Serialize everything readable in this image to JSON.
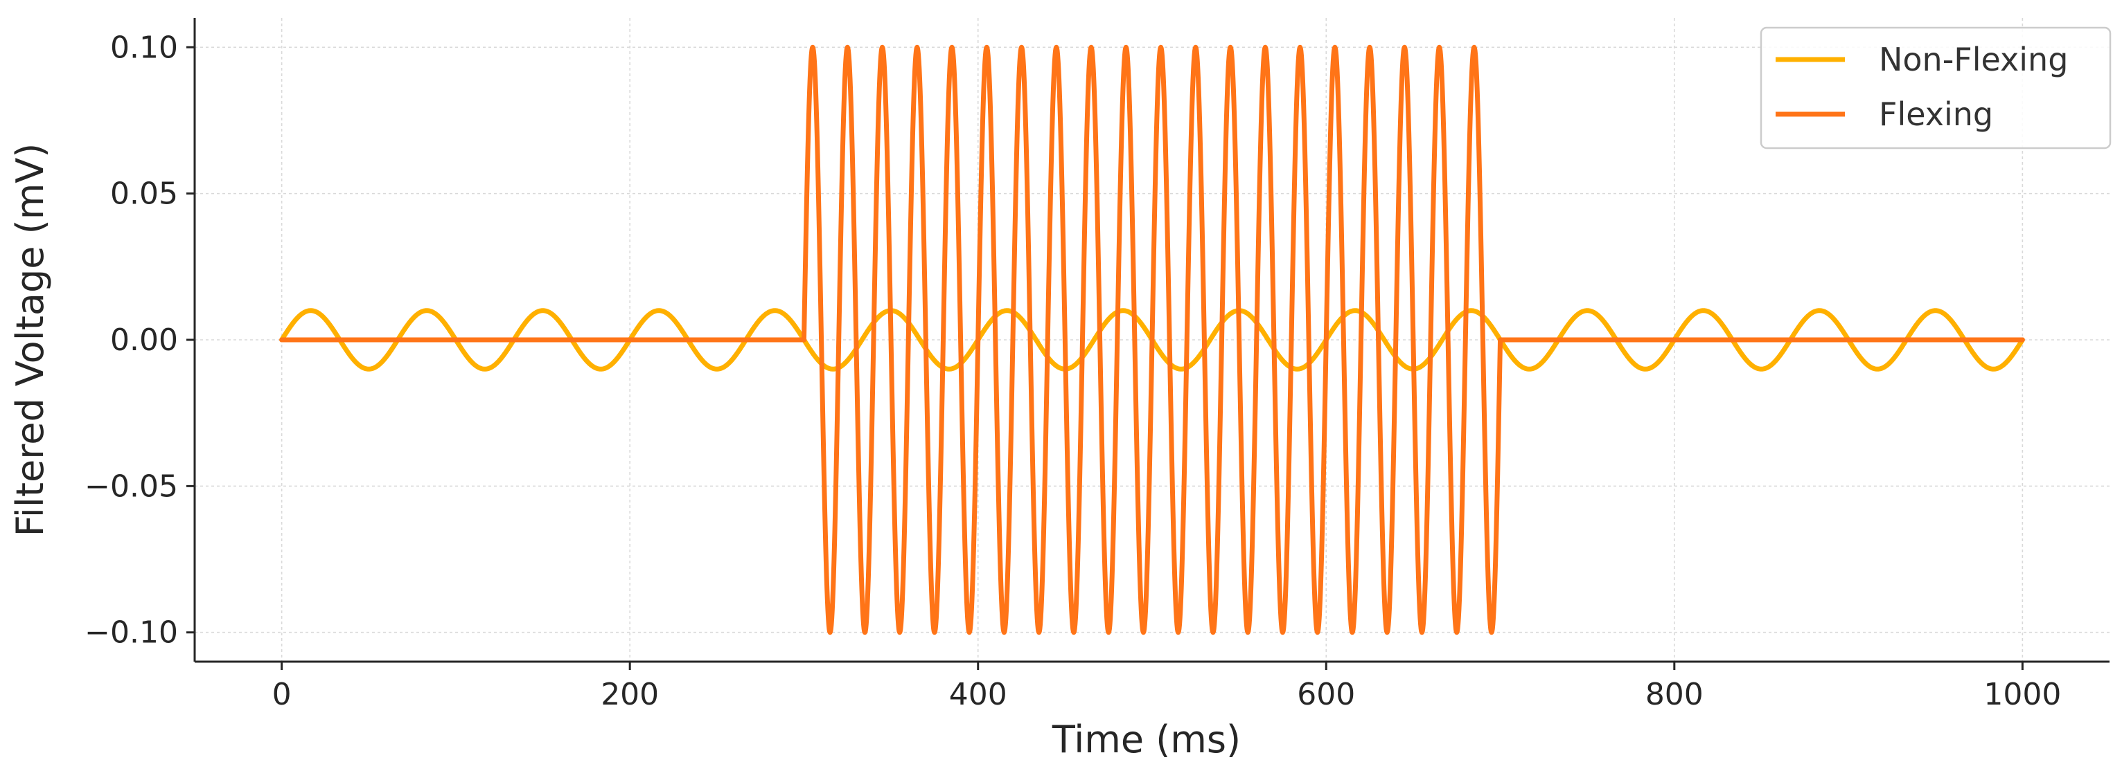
{
  "chart_data": {
    "type": "line",
    "title": "",
    "xlabel": "Time (ms)",
    "ylabel": "Filtered Voltage (mV)",
    "xlim": [
      -50,
      1050
    ],
    "ylim": [
      -0.11,
      0.11
    ],
    "xticks": [
      0,
      200,
      400,
      600,
      800,
      1000
    ],
    "xtick_labels": [
      "0",
      "200",
      "400",
      "600",
      "800",
      "1000"
    ],
    "yticks": [
      0.1,
      0.05,
      0.0,
      -0.05,
      -0.1
    ],
    "ytick_labels": [
      "0.10",
      "0.05",
      "0.00",
      "−0.05",
      "−0.10"
    ],
    "grid": true,
    "legend_position": "top-right",
    "series": [
      {
        "name": "Non-Flexing",
        "color": "#ffb000",
        "signal": "sine",
        "amplitude_mV": 0.01,
        "frequency_Hz": 15,
        "x_range_ms": [
          0,
          1000
        ]
      },
      {
        "name": "Flexing",
        "color": "#ff7417",
        "signal": "sine burst",
        "amplitude_mV": 0.1,
        "frequency_Hz": 50,
        "burst_range_ms": [
          300,
          700
        ],
        "baseline_mV": 0.0,
        "x_range_ms": [
          0,
          1000
        ]
      }
    ]
  }
}
